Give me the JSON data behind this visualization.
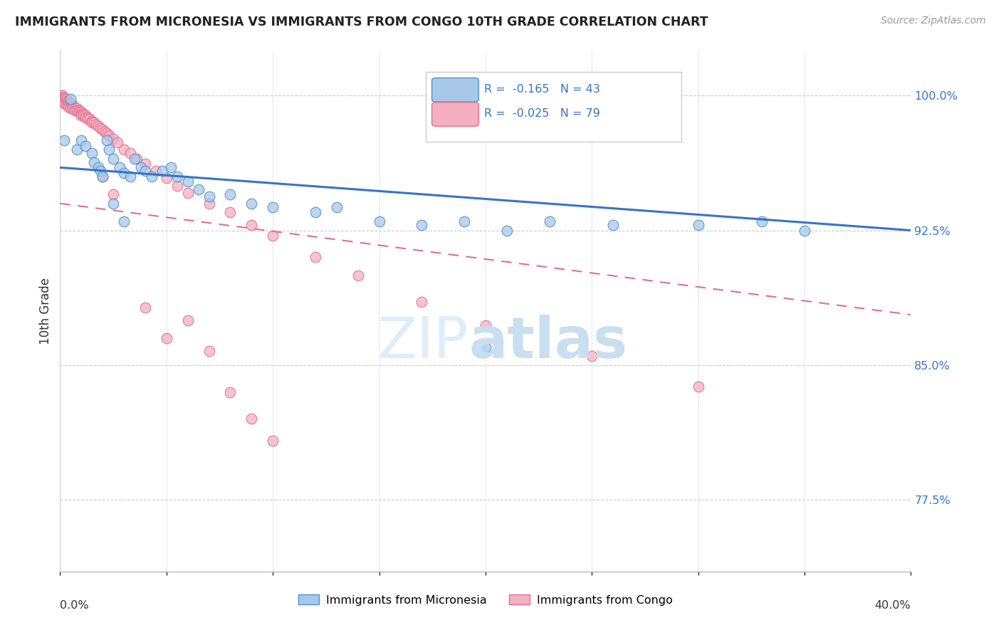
{
  "title": "IMMIGRANTS FROM MICRONESIA VS IMMIGRANTS FROM CONGO 10TH GRADE CORRELATION CHART",
  "source": "Source: ZipAtlas.com",
  "ylabel": "10th Grade",
  "yticks": [
    0.775,
    0.85,
    0.925,
    1.0
  ],
  "ytick_labels": [
    "77.5%",
    "85.0%",
    "92.5%",
    "100.0%"
  ],
  "xlim": [
    0.0,
    0.4
  ],
  "ylim": [
    0.735,
    1.025
  ],
  "legend_micronesia_R": "-0.165",
  "legend_micronesia_N": "43",
  "legend_congo_R": "-0.025",
  "legend_congo_N": "79",
  "color_micronesia": "#a8c8e8",
  "color_micronesia_edge": "#5090d0",
  "color_micronesia_line": "#3575c8",
  "color_congo": "#f4b0c0",
  "color_congo_edge": "#e07090",
  "color_congo_line": "#e07090",
  "micronesia_x": [
    0.002,
    0.005,
    0.008,
    0.01,
    0.012,
    0.015,
    0.016,
    0.018,
    0.019,
    0.02,
    0.022,
    0.023,
    0.025,
    0.028,
    0.03,
    0.033,
    0.035,
    0.038,
    0.04,
    0.043,
    0.048,
    0.052,
    0.055,
    0.06,
    0.065,
    0.07,
    0.08,
    0.09,
    0.1,
    0.12,
    0.13,
    0.15,
    0.17,
    0.19,
    0.21,
    0.23,
    0.26,
    0.3,
    0.33,
    0.35,
    0.025,
    0.03,
    0.2
  ],
  "micronesia_y": [
    0.975,
    0.998,
    0.97,
    0.975,
    0.972,
    0.968,
    0.963,
    0.96,
    0.958,
    0.955,
    0.975,
    0.97,
    0.965,
    0.96,
    0.957,
    0.955,
    0.965,
    0.96,
    0.958,
    0.955,
    0.958,
    0.96,
    0.955,
    0.952,
    0.948,
    0.944,
    0.945,
    0.94,
    0.938,
    0.935,
    0.938,
    0.93,
    0.928,
    0.93,
    0.925,
    0.93,
    0.928,
    0.928,
    0.93,
    0.925,
    0.94,
    0.93,
    0.86
  ],
  "congo_x": [
    0.001,
    0.001,
    0.001,
    0.001,
    0.001,
    0.002,
    0.002,
    0.002,
    0.002,
    0.003,
    0.003,
    0.003,
    0.003,
    0.004,
    0.004,
    0.004,
    0.004,
    0.005,
    0.005,
    0.005,
    0.005,
    0.006,
    0.006,
    0.006,
    0.007,
    0.007,
    0.008,
    0.008,
    0.009,
    0.009,
    0.01,
    0.01,
    0.01,
    0.011,
    0.011,
    0.012,
    0.012,
    0.013,
    0.013,
    0.014,
    0.015,
    0.015,
    0.016,
    0.017,
    0.018,
    0.019,
    0.02,
    0.021,
    0.022,
    0.023,
    0.025,
    0.027,
    0.03,
    0.033,
    0.036,
    0.04,
    0.045,
    0.05,
    0.055,
    0.06,
    0.07,
    0.08,
    0.09,
    0.1,
    0.12,
    0.14,
    0.17,
    0.2,
    0.25,
    0.3,
    0.02,
    0.025,
    0.04,
    0.05,
    0.06,
    0.07,
    0.08,
    0.09,
    0.1
  ],
  "congo_y": [
    1.0,
    1.0,
    0.999,
    0.998,
    0.997,
    0.999,
    0.998,
    0.997,
    0.996,
    0.998,
    0.997,
    0.996,
    0.995,
    0.997,
    0.996,
    0.995,
    0.994,
    0.996,
    0.995,
    0.994,
    0.993,
    0.995,
    0.994,
    0.993,
    0.993,
    0.992,
    0.993,
    0.992,
    0.992,
    0.991,
    0.991,
    0.99,
    0.989,
    0.99,
    0.989,
    0.989,
    0.988,
    0.988,
    0.987,
    0.987,
    0.986,
    0.985,
    0.985,
    0.984,
    0.983,
    0.982,
    0.981,
    0.98,
    0.979,
    0.978,
    0.976,
    0.974,
    0.97,
    0.968,
    0.965,
    0.962,
    0.958,
    0.954,
    0.95,
    0.946,
    0.94,
    0.935,
    0.928,
    0.922,
    0.91,
    0.9,
    0.885,
    0.872,
    0.855,
    0.838,
    0.955,
    0.945,
    0.882,
    0.865,
    0.875,
    0.858,
    0.835,
    0.82,
    0.808
  ]
}
